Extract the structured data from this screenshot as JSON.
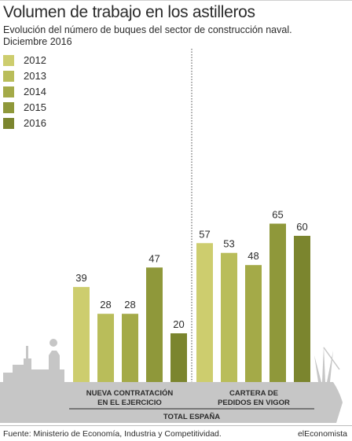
{
  "title": "Volumen de trabajo en los astilleros",
  "subtitle": "Evolución del número de buques del sector de construcción naval. Diciembre 2016",
  "source": "Fuente: Ministerio de Economía, Industria y Competitividad.",
  "brand": "elEconomista",
  "colors": {
    "2012": "#cdcd6e",
    "2013": "#b9bd5a",
    "2014": "#a4aa48",
    "2015": "#8f983a",
    "2016": "#7b852e",
    "ship": "#c6c6c6",
    "text": "#2b2b2b"
  },
  "chart_data": {
    "type": "bar",
    "title": "Volumen de trabajo en los astilleros",
    "subtitle": "Evolución del número de buques del sector de construcción naval. Diciembre 2016",
    "categories": [
      "NUEVA CONTRATACIÓN EN EL EJERCICIO",
      "CARTERA DE PEDIDOS EN VIGOR"
    ],
    "category_lines": [
      [
        "NUEVA CONTRATACIÓN",
        "EN EL EJERCICIO"
      ],
      [
        "CARTERA DE",
        "PEDIDOS EN VIGOR"
      ]
    ],
    "group_label": "TOTAL ESPAÑA",
    "series": [
      {
        "name": "2012",
        "values": [
          39,
          57
        ]
      },
      {
        "name": "2013",
        "values": [
          28,
          53
        ]
      },
      {
        "name": "2014",
        "values": [
          28,
          48
        ]
      },
      {
        "name": "2015",
        "values": [
          47,
          65
        ]
      },
      {
        "name": "2016",
        "values": [
          20,
          60
        ]
      }
    ],
    "ylim": [
      0,
      70
    ],
    "grid": false,
    "legend": "top-left",
    "xlabel": "",
    "ylabel": ""
  }
}
